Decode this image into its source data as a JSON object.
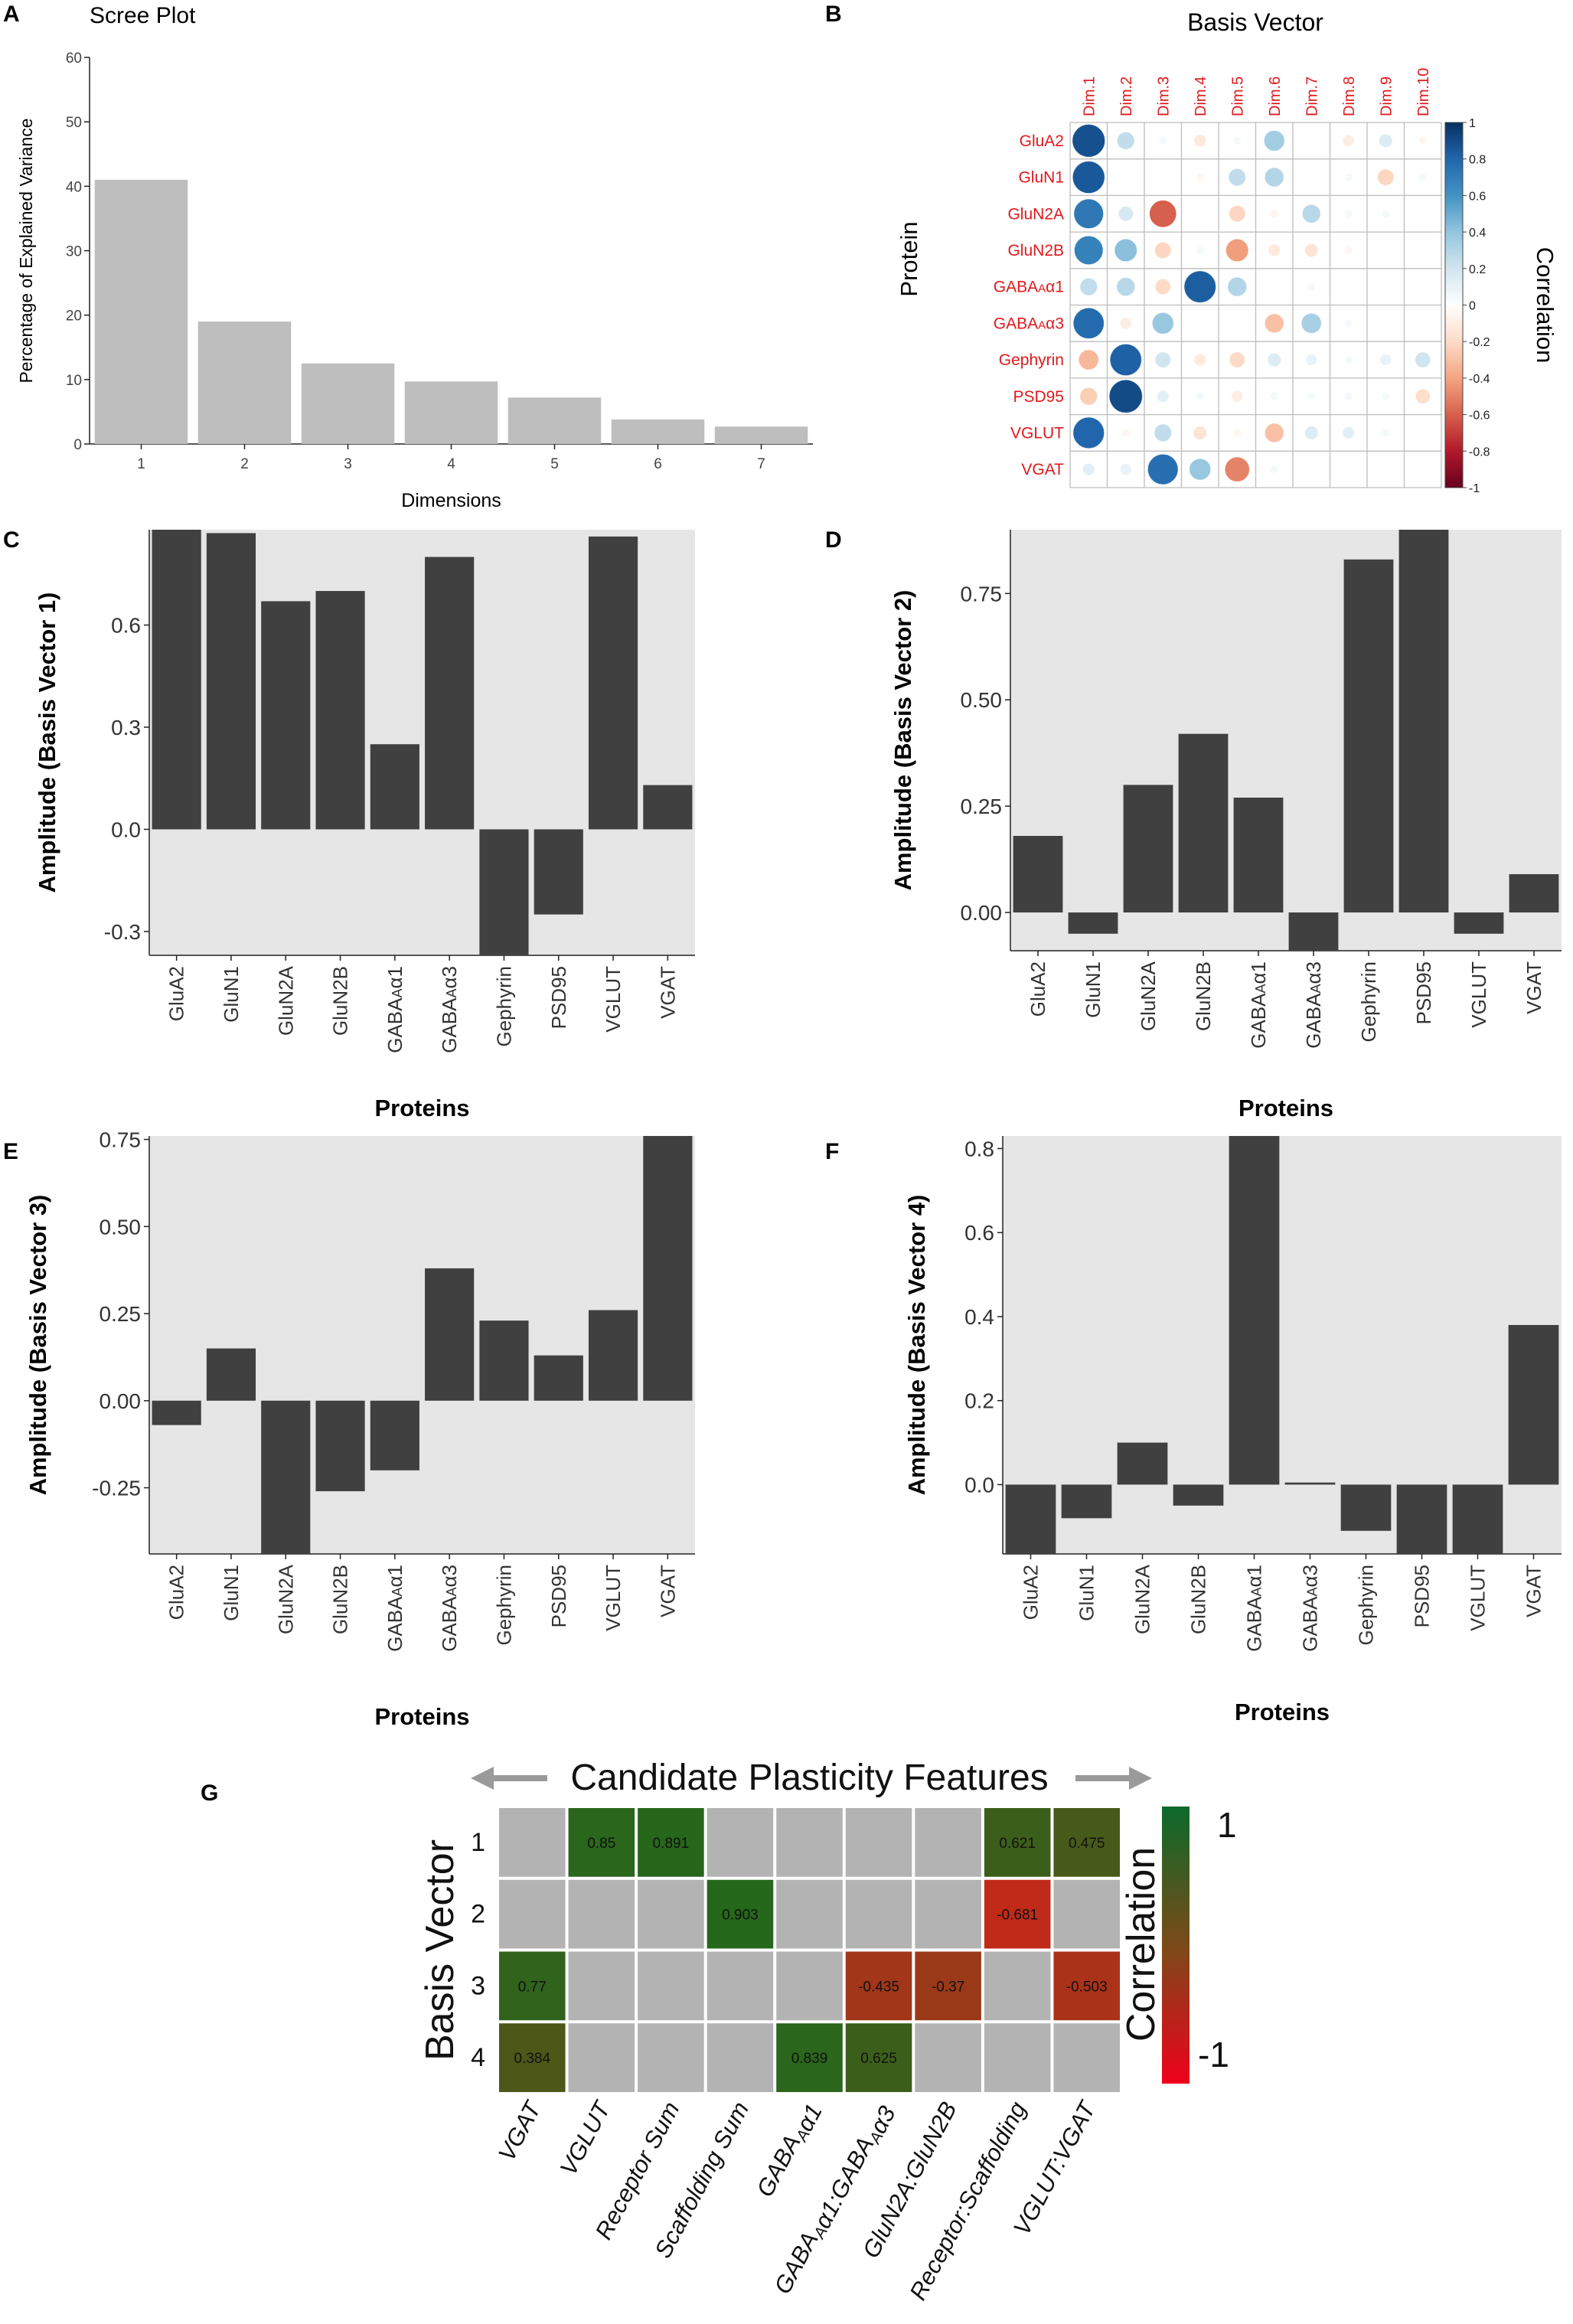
{
  "figure": {
    "panel_letters": {
      "A": "A",
      "B": "B",
      "C": "C",
      "D": "D",
      "E": "E",
      "F": "F",
      "G": "G"
    }
  },
  "chart_data": [
    {
      "id": "A",
      "type": "bar",
      "title": "Scree Plot",
      "xlabel": "Dimensions",
      "ylabel": "Percentage of Explained Variance",
      "categories": [
        "1",
        "2",
        "3",
        "4",
        "5",
        "6",
        "7"
      ],
      "values": [
        41,
        19,
        12.5,
        9.7,
        7.2,
        3.8,
        2.7
      ],
      "ylim": [
        0,
        60
      ],
      "yticks": [
        0,
        10,
        20,
        30,
        40,
        50,
        60
      ],
      "bar_color": "#bebebe"
    },
    {
      "id": "B",
      "type": "heatmap",
      "title": "Basis Vector",
      "ylabel": "Protein",
      "legend_title": "Correlation",
      "columns": [
        "Dim.1",
        "Dim.2",
        "Dim.3",
        "Dim.4",
        "Dim.5",
        "Dim.6",
        "Dim.7",
        "Dim.8",
        "Dim.9",
        "Dim.10"
      ],
      "rows": [
        "GluA2",
        "GluN1",
        "GluN2A",
        "GluN2B",
        "GABAAα1",
        "GABAAα3",
        "Gephyrin",
        "PSD95",
        "VGLUT",
        "VGAT"
      ],
      "values": [
        [
          0.88,
          0.25,
          0.05,
          -0.12,
          0.05,
          0.35,
          0,
          -0.1,
          0.15,
          -0.05
        ],
        [
          0.85,
          0,
          0,
          -0.05,
          0.25,
          0.3,
          0,
          0.05,
          -0.22,
          0.05
        ],
        [
          0.72,
          0.18,
          -0.6,
          0,
          -0.22,
          -0.05,
          0.28,
          0.05,
          0.05,
          0
        ],
        [
          0.68,
          0.42,
          -0.22,
          0.05,
          -0.42,
          -0.12,
          -0.15,
          -0.05,
          0,
          0
        ],
        [
          0.25,
          0.28,
          -0.2,
          0.83,
          0.3,
          0,
          0.05,
          0,
          0,
          0
        ],
        [
          0.78,
          -0.1,
          0.38,
          0,
          0,
          -0.3,
          0.33,
          0.05,
          0,
          0
        ],
        [
          -0.33,
          0.82,
          0.2,
          -0.12,
          -0.2,
          0.15,
          0.1,
          0.05,
          0.1,
          0.2
        ],
        [
          -0.25,
          0.9,
          0.12,
          0.05,
          -0.1,
          0.05,
          0.05,
          0.05,
          0.05,
          -0.18
        ],
        [
          0.8,
          -0.05,
          0.25,
          -0.15,
          -0.05,
          -0.3,
          0.15,
          0.12,
          0.05,
          0
        ],
        [
          0.12,
          0.1,
          0.76,
          0.38,
          -0.5,
          0.05,
          0,
          0,
          0,
          0
        ]
      ],
      "legend_ticks": [
        "1",
        "0.8",
        "0.6",
        "0.4",
        "0.2",
        "0",
        "-0.2",
        "-0.4",
        "-0.6",
        "-0.8",
        "-1"
      ],
      "legend_tick_values": [
        1,
        0.8,
        0.6,
        0.4,
        0.2,
        0,
        -0.2,
        -0.4,
        -0.6,
        -0.8,
        -1
      ],
      "label_color": "#e0191d"
    },
    {
      "id": "C",
      "type": "bar",
      "xlabel": "Proteins",
      "ylabel": "Amplitude (Basis Vector 1)",
      "categories": [
        "GluA2",
        "GluN1",
        "GluN2A",
        "GluN2B",
        "GABAAα1",
        "GABAAα3",
        "Gephyrin",
        "PSD95",
        "VGLUT",
        "VGAT"
      ],
      "values": [
        0.88,
        0.87,
        0.67,
        0.7,
        0.25,
        0.8,
        -0.4,
        -0.25,
        0.86,
        0.13
      ],
      "ylim": [
        -0.37,
        0.88
      ],
      "yticks": [
        -0.3,
        0,
        0.3,
        0.6
      ],
      "ytick_labels": [
        "-0.3",
        "0.0",
        "0.3",
        "0.6"
      ]
    },
    {
      "id": "D",
      "type": "bar",
      "xlabel": "Proteins",
      "ylabel": "Amplitude (Basis Vector 2)",
      "categories": [
        "GluA2",
        "GluN1",
        "GluN2A",
        "GluN2B",
        "GABAAα1",
        "GABAAα3",
        "Gephyrin",
        "PSD95",
        "VGLUT",
        "VGAT"
      ],
      "values": [
        0.18,
        -0.05,
        0.3,
        0.42,
        0.27,
        -0.11,
        0.83,
        0.92,
        -0.05,
        0.09
      ],
      "ylim": [
        -0.09,
        0.9
      ],
      "yticks": [
        0,
        0.25,
        0.5,
        0.75
      ],
      "ytick_labels": [
        "0.00",
        "0.25",
        "0.50",
        "0.75"
      ]
    },
    {
      "id": "E",
      "type": "bar",
      "xlabel": "Proteins",
      "ylabel": "Amplitude (Basis Vector 3)",
      "categories": [
        "GluA2",
        "GluN1",
        "GluN2A",
        "GluN2B",
        "GABAAα1",
        "GABAAα3",
        "Gephyrin",
        "PSD95",
        "VGLUT",
        "VGAT"
      ],
      "values": [
        -0.07,
        0.15,
        -0.45,
        -0.26,
        -0.2,
        0.38,
        0.23,
        0.13,
        0.26,
        0.8
      ],
      "ylim": [
        -0.44,
        0.76
      ],
      "yticks": [
        -0.25,
        0,
        0.25,
        0.5,
        0.75
      ],
      "ytick_labels": [
        "-0.25",
        "0.00",
        "0.25",
        "0.50",
        "0.75"
      ]
    },
    {
      "id": "F",
      "type": "bar",
      "xlabel": "Proteins",
      "ylabel": "Amplitude (Basis Vector 4)",
      "categories": [
        "GluA2",
        "GluN1",
        "GluN2A",
        "GluN2B",
        "GABAAα1",
        "GABAAα3",
        "Gephyrin",
        "PSD95",
        "VGLUT",
        "VGAT"
      ],
      "values": [
        -0.2,
        -0.08,
        0.1,
        -0.05,
        0.85,
        0.005,
        -0.11,
        -0.2,
        -0.2,
        0.38
      ],
      "ylim": [
        -0.165,
        0.83
      ],
      "yticks": [
        0,
        0.2,
        0.4,
        0.6,
        0.8
      ],
      "ytick_labels": [
        "0.0",
        "0.2",
        "0.4",
        "0.6",
        "0.8"
      ]
    },
    {
      "id": "G",
      "type": "heatmap",
      "title": "Candidate Plasticity Features",
      "ylabel": "Basis Vector",
      "legend_title": "Correlation",
      "legend_max": "1",
      "legend_min": "-1",
      "rows": [
        "1",
        "2",
        "3",
        "4"
      ],
      "columns": [
        "VGAT",
        "VGLUT",
        "Receptor Sum",
        "Scaffolding Sum",
        "GABAAα1",
        "GABAAα1:GABAAα3",
        "GluN2A:GluN2B",
        "Receptor:Scaffolding",
        "VGLUT:VGAT"
      ],
      "cells": [
        {
          "row": 0,
          "col": 1,
          "value": 0.85,
          "label": "0.85"
        },
        {
          "row": 0,
          "col": 2,
          "value": 0.891,
          "label": "0.891"
        },
        {
          "row": 0,
          "col": 7,
          "value": 0.621,
          "label": "0.621"
        },
        {
          "row": 0,
          "col": 8,
          "value": 0.475,
          "label": "0.475"
        },
        {
          "row": 1,
          "col": 3,
          "value": 0.903,
          "label": "0.903"
        },
        {
          "row": 1,
          "col": 7,
          "value": -0.681,
          "label": "-0.681"
        },
        {
          "row": 2,
          "col": 0,
          "value": 0.77,
          "label": "0.77"
        },
        {
          "row": 2,
          "col": 5,
          "value": -0.435,
          "label": "-0.435"
        },
        {
          "row": 2,
          "col": 6,
          "value": -0.37,
          "label": "-0.37"
        },
        {
          "row": 2,
          "col": 8,
          "value": -0.503,
          "label": "-0.503"
        },
        {
          "row": 3,
          "col": 0,
          "value": 0.384,
          "label": "0.384"
        },
        {
          "row": 3,
          "col": 4,
          "value": 0.839,
          "label": "0.839"
        },
        {
          "row": 3,
          "col": 5,
          "value": 0.625,
          "label": "0.625"
        }
      ],
      "empty_color": "#b3b3b3",
      "pos_color": "#1e6b1c",
      "neg_color": "#e81b1b",
      "mid_color": "#6b4a16"
    }
  ],
  "colors": {
    "bar_dark": "#404040",
    "panel_bg": "#e6e6e6",
    "scree_bar": "#bebebe"
  }
}
